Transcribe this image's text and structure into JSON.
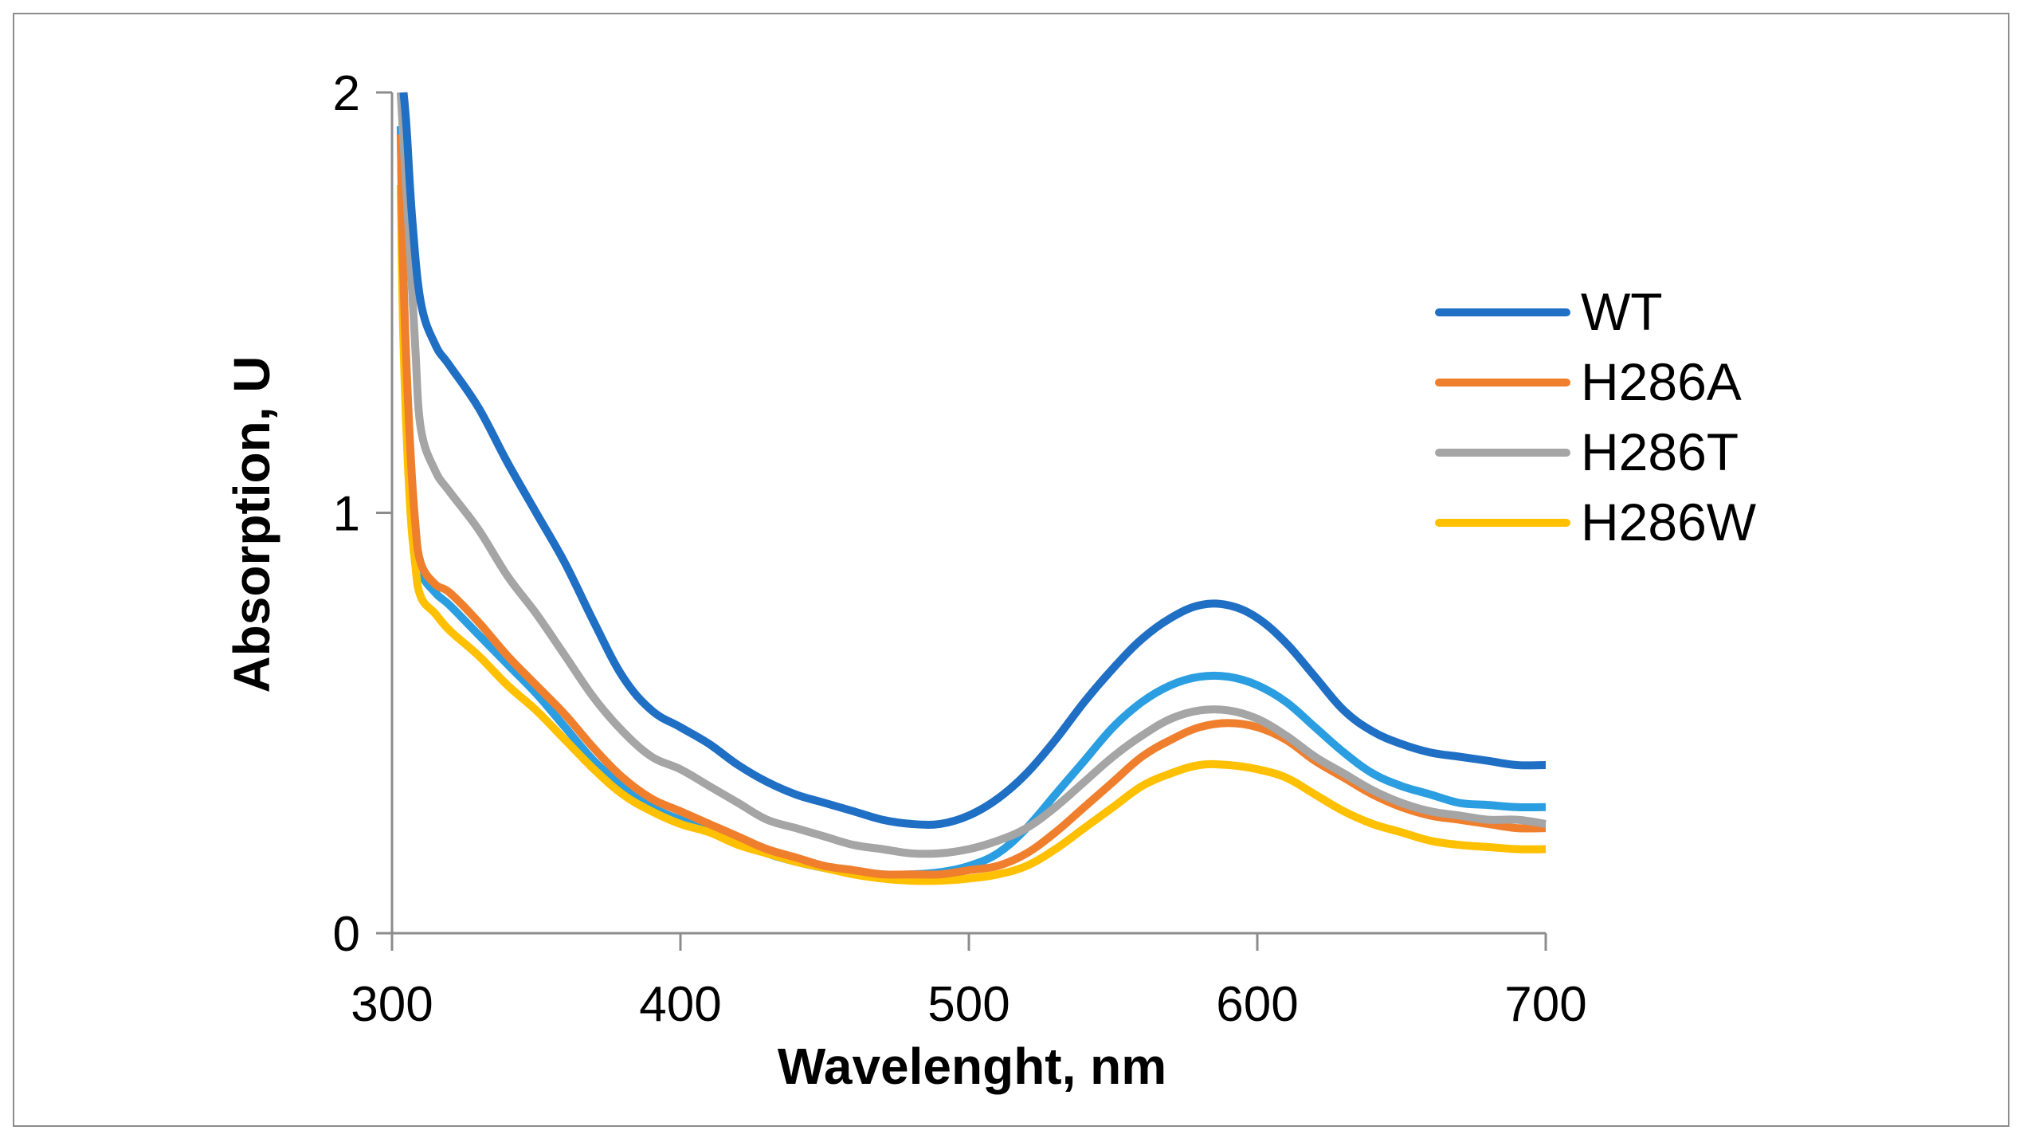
{
  "chart_data": {
    "type": "line",
    "title": "",
    "xlabel": "Wavelenght, nm",
    "ylabel": "Absorption, U",
    "xlim": [
      300,
      700
    ],
    "ylim": [
      0,
      2
    ],
    "xticks": [
      "300",
      "400",
      "500",
      "600",
      "700"
    ],
    "yticks": [
      "0",
      "1",
      "2"
    ],
    "grid": false,
    "legend_position": "right",
    "series": [
      {
        "name": "WT",
        "color": "#1f6fc5",
        "x": [
          304,
          305,
          307,
          310,
          315,
          320,
          330,
          340,
          350,
          360,
          370,
          380,
          390,
          400,
          410,
          420,
          430,
          440,
          450,
          460,
          470,
          480,
          490,
          500,
          510,
          520,
          530,
          540,
          550,
          560,
          570,
          580,
          590,
          600,
          610,
          620,
          630,
          640,
          650,
          660,
          670,
          680,
          690,
          700
        ],
        "y": [
          2.0,
          1.92,
          1.7,
          1.5,
          1.4,
          1.35,
          1.25,
          1.12,
          1.0,
          0.88,
          0.74,
          0.61,
          0.53,
          0.49,
          0.45,
          0.4,
          0.36,
          0.33,
          0.31,
          0.29,
          0.27,
          0.26,
          0.26,
          0.28,
          0.32,
          0.38,
          0.46,
          0.55,
          0.63,
          0.7,
          0.75,
          0.78,
          0.78,
          0.75,
          0.69,
          0.61,
          0.53,
          0.48,
          0.45,
          0.43,
          0.42,
          0.41,
          0.4,
          0.4
        ]
      },
      {
        "name": "H286A",
        "color": "#f07f2d",
        "x": [
          303,
          304,
          306,
          308,
          310,
          315,
          320,
          330,
          340,
          350,
          360,
          370,
          380,
          390,
          400,
          410,
          420,
          430,
          440,
          450,
          460,
          470,
          480,
          490,
          500,
          510,
          520,
          530,
          540,
          550,
          560,
          570,
          580,
          590,
          600,
          610,
          620,
          630,
          640,
          650,
          660,
          670,
          680,
          690,
          700
        ],
        "y": [
          1.9,
          1.55,
          1.2,
          0.98,
          0.88,
          0.83,
          0.81,
          0.74,
          0.66,
          0.59,
          0.52,
          0.44,
          0.37,
          0.32,
          0.29,
          0.26,
          0.23,
          0.2,
          0.18,
          0.16,
          0.15,
          0.14,
          0.14,
          0.14,
          0.15,
          0.16,
          0.19,
          0.24,
          0.3,
          0.36,
          0.42,
          0.46,
          0.49,
          0.5,
          0.49,
          0.46,
          0.41,
          0.37,
          0.33,
          0.3,
          0.28,
          0.27,
          0.26,
          0.25,
          0.25
        ]
      },
      {
        "name": "H286T",
        "color": "#a5a5a5",
        "x": [
          303,
          304,
          306,
          308,
          310,
          315,
          320,
          330,
          340,
          350,
          360,
          370,
          380,
          390,
          400,
          410,
          420,
          430,
          440,
          450,
          460,
          470,
          480,
          490,
          500,
          510,
          520,
          530,
          540,
          550,
          560,
          570,
          580,
          590,
          600,
          610,
          620,
          630,
          640,
          650,
          660,
          670,
          680,
          690,
          700
        ],
        "y": [
          2.0,
          1.88,
          1.65,
          1.4,
          1.2,
          1.1,
          1.05,
          0.96,
          0.85,
          0.76,
          0.66,
          0.56,
          0.48,
          0.42,
          0.39,
          0.35,
          0.31,
          0.27,
          0.25,
          0.23,
          0.21,
          0.2,
          0.19,
          0.19,
          0.2,
          0.22,
          0.25,
          0.3,
          0.36,
          0.42,
          0.47,
          0.51,
          0.53,
          0.53,
          0.51,
          0.47,
          0.42,
          0.38,
          0.34,
          0.31,
          0.29,
          0.28,
          0.27,
          0.27,
          0.26
        ]
      },
      {
        "name": "H286W",
        "color": "#ffc000",
        "x": [
          303,
          304,
          306,
          308,
          310,
          315,
          320,
          330,
          340,
          350,
          360,
          370,
          380,
          390,
          400,
          410,
          420,
          430,
          440,
          450,
          460,
          470,
          480,
          490,
          500,
          510,
          520,
          530,
          540,
          550,
          560,
          570,
          580,
          590,
          600,
          610,
          620,
          630,
          640,
          650,
          660,
          670,
          680,
          690,
          700
        ],
        "y": [
          1.78,
          1.4,
          1.05,
          0.88,
          0.8,
          0.76,
          0.72,
          0.66,
          0.59,
          0.53,
          0.46,
          0.39,
          0.33,
          0.29,
          0.26,
          0.24,
          0.21,
          0.19,
          0.17,
          0.155,
          0.14,
          0.13,
          0.125,
          0.125,
          0.13,
          0.14,
          0.16,
          0.2,
          0.25,
          0.3,
          0.35,
          0.38,
          0.4,
          0.4,
          0.39,
          0.37,
          0.33,
          0.29,
          0.26,
          0.24,
          0.22,
          0.21,
          0.205,
          0.2,
          0.2
        ]
      },
      {
        "name": "",
        "color": "#2a9ee0",
        "x": [
          303,
          304,
          306,
          308,
          310,
          315,
          320,
          330,
          340,
          350,
          360,
          370,
          380,
          390,
          400,
          410,
          420,
          430,
          440,
          450,
          460,
          470,
          480,
          490,
          500,
          510,
          520,
          530,
          540,
          550,
          560,
          570,
          580,
          590,
          600,
          610,
          620,
          630,
          640,
          650,
          660,
          670,
          680,
          690,
          700
        ],
        "y": [
          1.92,
          1.55,
          1.18,
          0.96,
          0.86,
          0.81,
          0.78,
          0.71,
          0.64,
          0.57,
          0.49,
          0.41,
          0.35,
          0.3,
          0.27,
          0.25,
          0.22,
          0.19,
          0.17,
          0.155,
          0.145,
          0.14,
          0.14,
          0.145,
          0.16,
          0.19,
          0.25,
          0.33,
          0.41,
          0.49,
          0.55,
          0.59,
          0.61,
          0.61,
          0.59,
          0.55,
          0.49,
          0.43,
          0.38,
          0.35,
          0.33,
          0.31,
          0.305,
          0.3,
          0.3
        ]
      }
    ]
  }
}
